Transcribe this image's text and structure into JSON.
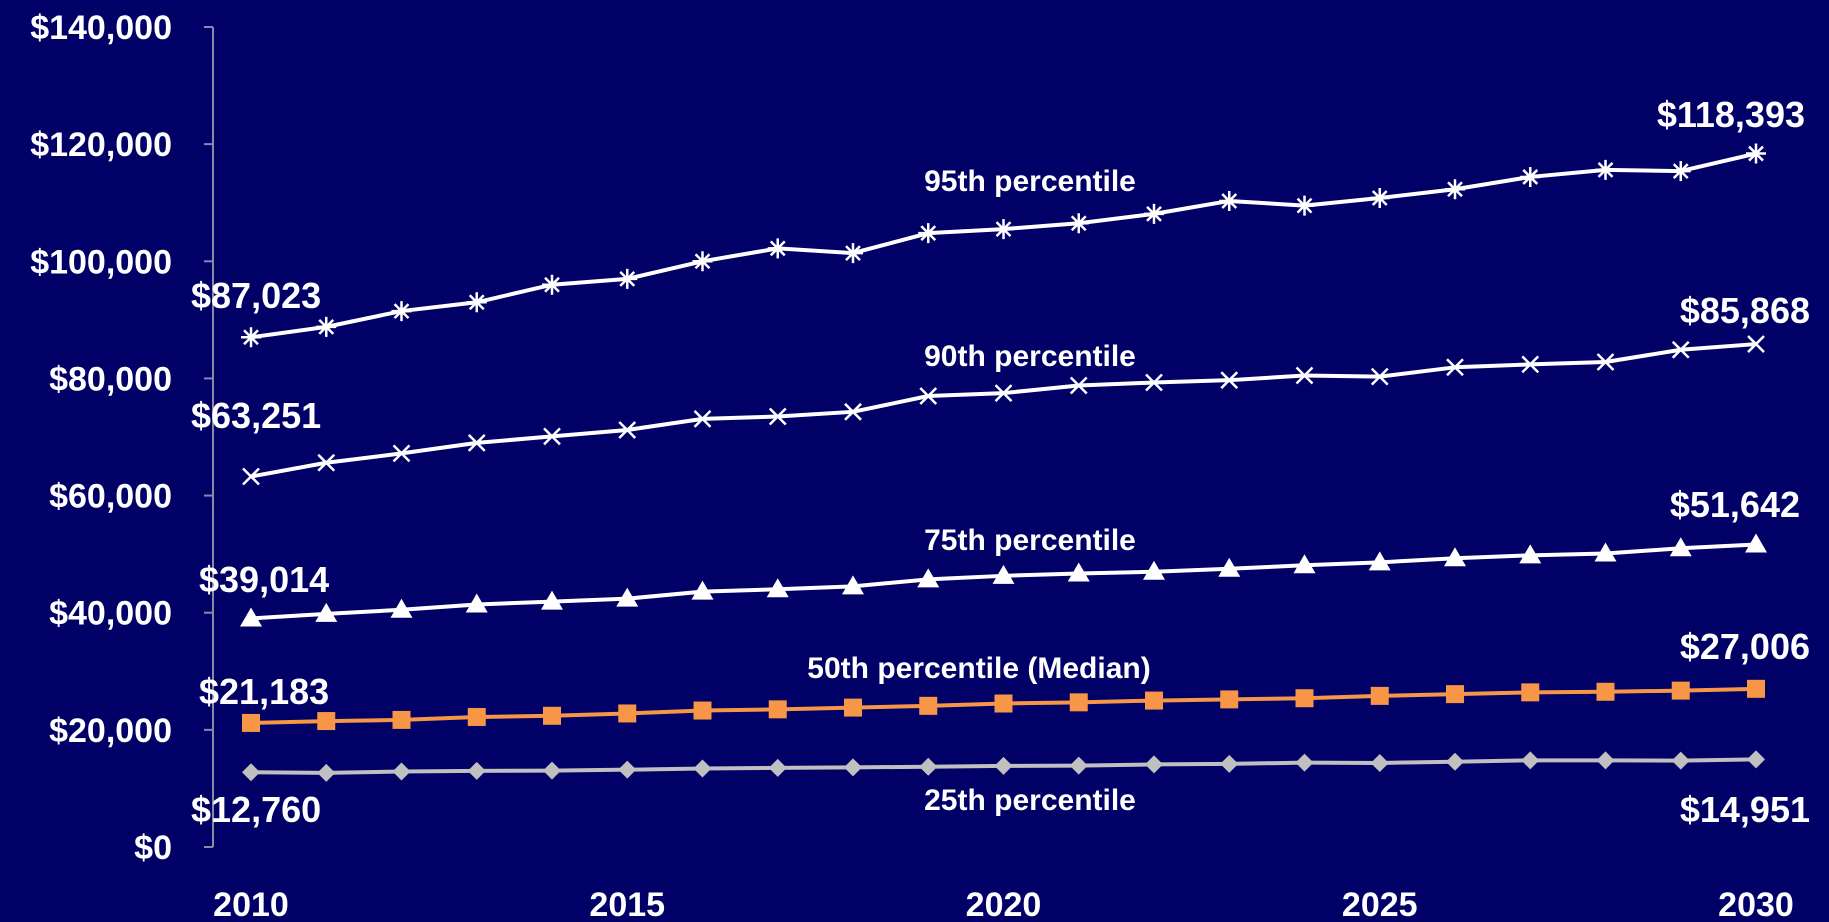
{
  "chart_data": {
    "type": "line",
    "x": [
      2010,
      2011,
      2012,
      2013,
      2014,
      2015,
      2016,
      2017,
      2018,
      2019,
      2020,
      2021,
      2022,
      2023,
      2024,
      2025,
      2026,
      2027,
      2028,
      2029,
      2030
    ],
    "x_ticks": [
      "2010",
      "2015",
      "2020",
      "2025",
      "2030"
    ],
    "y_ticks": [
      "$0",
      "$20,000",
      "$40,000",
      "$60,000",
      "$80,000",
      "$100,000",
      "$120,000",
      "$140,000"
    ],
    "ylim": [
      0,
      140000
    ],
    "grid": false,
    "title": "",
    "xlabel": "",
    "ylabel": "",
    "series": [
      {
        "name": "95th percentile",
        "color": "#ffffff",
        "marker": "asterisk",
        "values": [
          87023,
          88800,
          91500,
          93000,
          96000,
          97000,
          100000,
          102200,
          101400,
          104800,
          105500,
          106500,
          108100,
          110300,
          109500,
          110800,
          112300,
          114400,
          115600,
          115400,
          118393
        ],
        "start_label": "$87,023",
        "end_label": "$118,393"
      },
      {
        "name": "90th percentile",
        "color": "#ffffff",
        "marker": "x",
        "values": [
          63251,
          65600,
          67200,
          69000,
          70100,
          71200,
          73100,
          73500,
          74300,
          77000,
          77500,
          78800,
          79300,
          79700,
          80500,
          80300,
          81900,
          82400,
          82800,
          84900,
          85868
        ],
        "start_label": "$63,251",
        "end_label": "$85,868"
      },
      {
        "name": "75th percentile",
        "color": "#ffffff",
        "marker": "triangle",
        "values": [
          39014,
          39800,
          40500,
          41400,
          41900,
          42400,
          43600,
          44000,
          44500,
          45700,
          46300,
          46700,
          47000,
          47500,
          48100,
          48600,
          49300,
          49800,
          50100,
          51000,
          51642
        ],
        "start_label": "$39,014",
        "end_label": "$51,642"
      },
      {
        "name": "50th percentile (Median)",
        "color": "#f79646",
        "marker": "square",
        "values": [
          21183,
          21500,
          21700,
          22200,
          22400,
          22800,
          23300,
          23500,
          23800,
          24100,
          24500,
          24700,
          25000,
          25200,
          25400,
          25800,
          26100,
          26400,
          26500,
          26700,
          27006
        ],
        "start_label": "$21,183",
        "end_label": "$27,006"
      },
      {
        "name": "25th percentile",
        "color": "#c0c0c0",
        "marker": "diamond",
        "values": [
          12760,
          12650,
          12900,
          13000,
          13050,
          13200,
          13400,
          13500,
          13600,
          13700,
          13850,
          13900,
          14100,
          14200,
          14400,
          14350,
          14550,
          14800,
          14800,
          14750,
          14951
        ],
        "start_label": "$12,760",
        "end_label": "$14,951"
      }
    ]
  }
}
